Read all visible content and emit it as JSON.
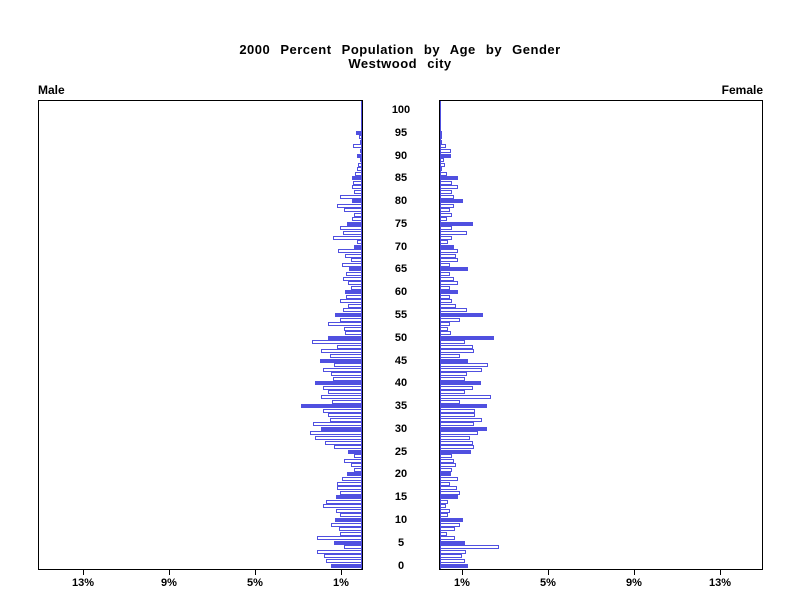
{
  "title": {
    "line1": "2000 Percent Population by Age by Gender",
    "line2": "Westwood city"
  },
  "side_labels": {
    "left": "Male",
    "right": "Female"
  },
  "colors": {
    "bar_blue": "#5050e0",
    "bar_outline": "#5050e0",
    "bar_white_fill": "#ffffff",
    "axis_black": "#000000"
  },
  "chart_data": {
    "type": "bar",
    "subtype": "population-pyramid",
    "title": "2000 Percent Population by Age by Gender",
    "subtitle": "Westwood city",
    "unit": "percent of total population",
    "legend_note": "bars for ages divisible by 5 are solid blue; other single-year ages are white with blue outline",
    "age_axis": {
      "min": 0,
      "max": 100,
      "tick_interval": 5,
      "tick_labels": [
        "0",
        "5",
        "10",
        "15",
        "20",
        "25",
        "30",
        "35",
        "40",
        "45",
        "50",
        "55",
        "60",
        "65",
        "70",
        "75",
        "80",
        "85",
        "90",
        "95",
        "100"
      ]
    },
    "x_axis": {
      "axis_max_percent": 15,
      "male_ticks": [
        {
          "label": "13%",
          "value": 13
        },
        {
          "label": "9%",
          "value": 9
        },
        {
          "label": "5%",
          "value": 5
        },
        {
          "label": "1%",
          "value": 1
        }
      ],
      "female_ticks": [
        {
          "label": "1%",
          "value": 1
        },
        {
          "label": "5%",
          "value": 5
        },
        {
          "label": "9%",
          "value": 9
        },
        {
          "label": "13%",
          "value": 13
        }
      ]
    },
    "series": [
      {
        "name": "Male",
        "side": "left",
        "ages": "single years 0-100",
        "values": [
          1.45,
          1.68,
          1.77,
          2.09,
          0.82,
          1.32,
          2.09,
          1.0,
          1.09,
          1.45,
          1.27,
          1.0,
          1.23,
          1.82,
          1.68,
          1.23,
          1.0,
          1.18,
          1.18,
          0.95,
          0.68,
          0.35,
          0.5,
          0.86,
          0.36,
          0.64,
          1.3,
          1.7,
          2.2,
          2.4,
          1.9,
          2.3,
          1.5,
          1.6,
          1.8,
          2.85,
          1.4,
          1.9,
          1.6,
          1.8,
          2.2,
          1.35,
          1.45,
          1.8,
          1.3,
          1.95,
          1.5,
          1.9,
          1.15,
          2.33,
          1.6,
          0.77,
          0.86,
          1.59,
          1.0,
          1.27,
          0.9,
          0.64,
          1.0,
          0.73,
          0.8,
          0.5,
          0.64,
          0.9,
          0.73,
          0.6,
          0.95,
          0.5,
          0.8,
          1.1,
          0.36,
          0.23,
          1.36,
          0.9,
          1.0,
          0.68,
          0.45,
          0.36,
          0.82,
          1.14,
          0.45,
          1.0,
          0.36,
          0.45,
          0.41,
          0.45,
          0.32,
          0.23,
          0.18,
          0.09,
          0.23,
          0.09,
          0.41,
          0.05,
          0.14,
          0.27,
          0,
          0,
          0,
          0,
          0
        ]
      },
      {
        "name": "Female",
        "side": "right",
        "ages": "single years 0-100",
        "values": [
          1.32,
          1.18,
          1.0,
          1.23,
          2.73,
          1.14,
          0.68,
          0.32,
          0.68,
          0.95,
          1.09,
          0.36,
          0.45,
          0.27,
          0.36,
          0.82,
          0.91,
          0.77,
          0.45,
          0.86,
          0.5,
          0.55,
          0.73,
          0.64,
          0.55,
          1.45,
          1.59,
          1.55,
          1.41,
          1.77,
          2.17,
          1.59,
          1.95,
          1.64,
          1.64,
          2.17,
          0.91,
          2.38,
          1.18,
          1.55,
          1.91,
          1.18,
          1.27,
          1.95,
          2.23,
          1.32,
          0.91,
          1.59,
          1.55,
          1.14,
          2.5,
          0.5,
          0.36,
          0.45,
          0.95,
          2.0,
          1.27,
          0.73,
          0.55,
          0.45,
          0.82,
          0.45,
          0.82,
          0.64,
          0.45,
          1.32,
          0.45,
          0.82,
          0.73,
          0.82,
          0.64,
          0.36,
          0.55,
          1.27,
          0.55,
          1.55,
          0.32,
          0.55,
          0.45,
          0.64,
          1.09,
          0.64,
          0.55,
          0.82,
          0.55,
          0.82,
          0.32,
          0.09,
          0.23,
          0.18,
          0.5,
          0.5,
          0.27,
          0.05,
          0.09,
          0.09,
          0,
          0,
          0,
          0,
          0
        ]
      }
    ]
  }
}
